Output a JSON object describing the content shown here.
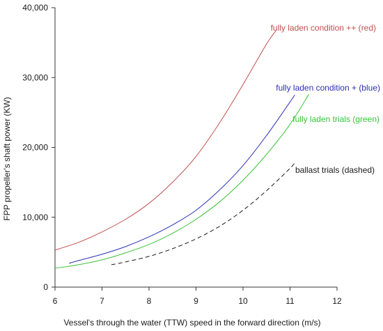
{
  "chart_data": {
    "type": "line",
    "title": "",
    "xlabel": "Vessel's through the water (TTW) speed in the forward direction (m/s)",
    "ylabel": "FPP propeller's shaft power (KW)",
    "xlim": [
      6,
      12
    ],
    "ylim": [
      0,
      40000
    ],
    "x_ticks": [
      6,
      7,
      8,
      9,
      10,
      11,
      12
    ],
    "y_ticks": [
      0,
      10000,
      20000,
      30000,
      40000
    ],
    "y_tick_labels": [
      "0",
      "10,000",
      "20,000",
      "30,000",
      "40,000"
    ],
    "grid": false,
    "series": [
      {
        "name": "fully laden condition ++ (red)",
        "color": "#c0504d",
        "dash": false,
        "x": [
          6.0,
          6.5,
          7.0,
          7.5,
          8.0,
          8.5,
          9.0,
          9.5,
          10.0,
          10.5,
          10.7
        ],
        "y": [
          5300,
          6400,
          7900,
          9700,
          12000,
          15000,
          18700,
          23500,
          29000,
          34800,
          36700
        ]
      },
      {
        "name": "fully laden condition + (blue)",
        "color": "#2e2eb8",
        "dash": false,
        "x": [
          6.3,
          6.5,
          7.0,
          7.5,
          8.0,
          8.5,
          9.0,
          9.5,
          10.0,
          10.5,
          11.0,
          11.1
        ],
        "y": [
          3400,
          3800,
          4700,
          5800,
          7200,
          8900,
          11000,
          13900,
          17400,
          21700,
          26500,
          27500
        ]
      },
      {
        "name": "fully laden trials (green)",
        "color": "#3ac23a",
        "dash": false,
        "x": [
          6.0,
          6.5,
          7.0,
          7.5,
          8.0,
          8.5,
          9.0,
          9.5,
          10.0,
          10.5,
          11.0,
          11.4
        ],
        "y": [
          2700,
          3200,
          3900,
          4900,
          6100,
          7700,
          9700,
          12200,
          15300,
          19000,
          23300,
          27600
        ]
      },
      {
        "name": "ballast trials (dashed)",
        "color": "#1a1a1a",
        "dash": true,
        "x": [
          7.2,
          7.5,
          8.0,
          8.5,
          9.0,
          9.5,
          10.0,
          10.5,
          11.0,
          11.1
        ],
        "y": [
          3200,
          3600,
          4400,
          5500,
          6900,
          8700,
          11000,
          13800,
          17000,
          17800
        ]
      }
    ]
  }
}
